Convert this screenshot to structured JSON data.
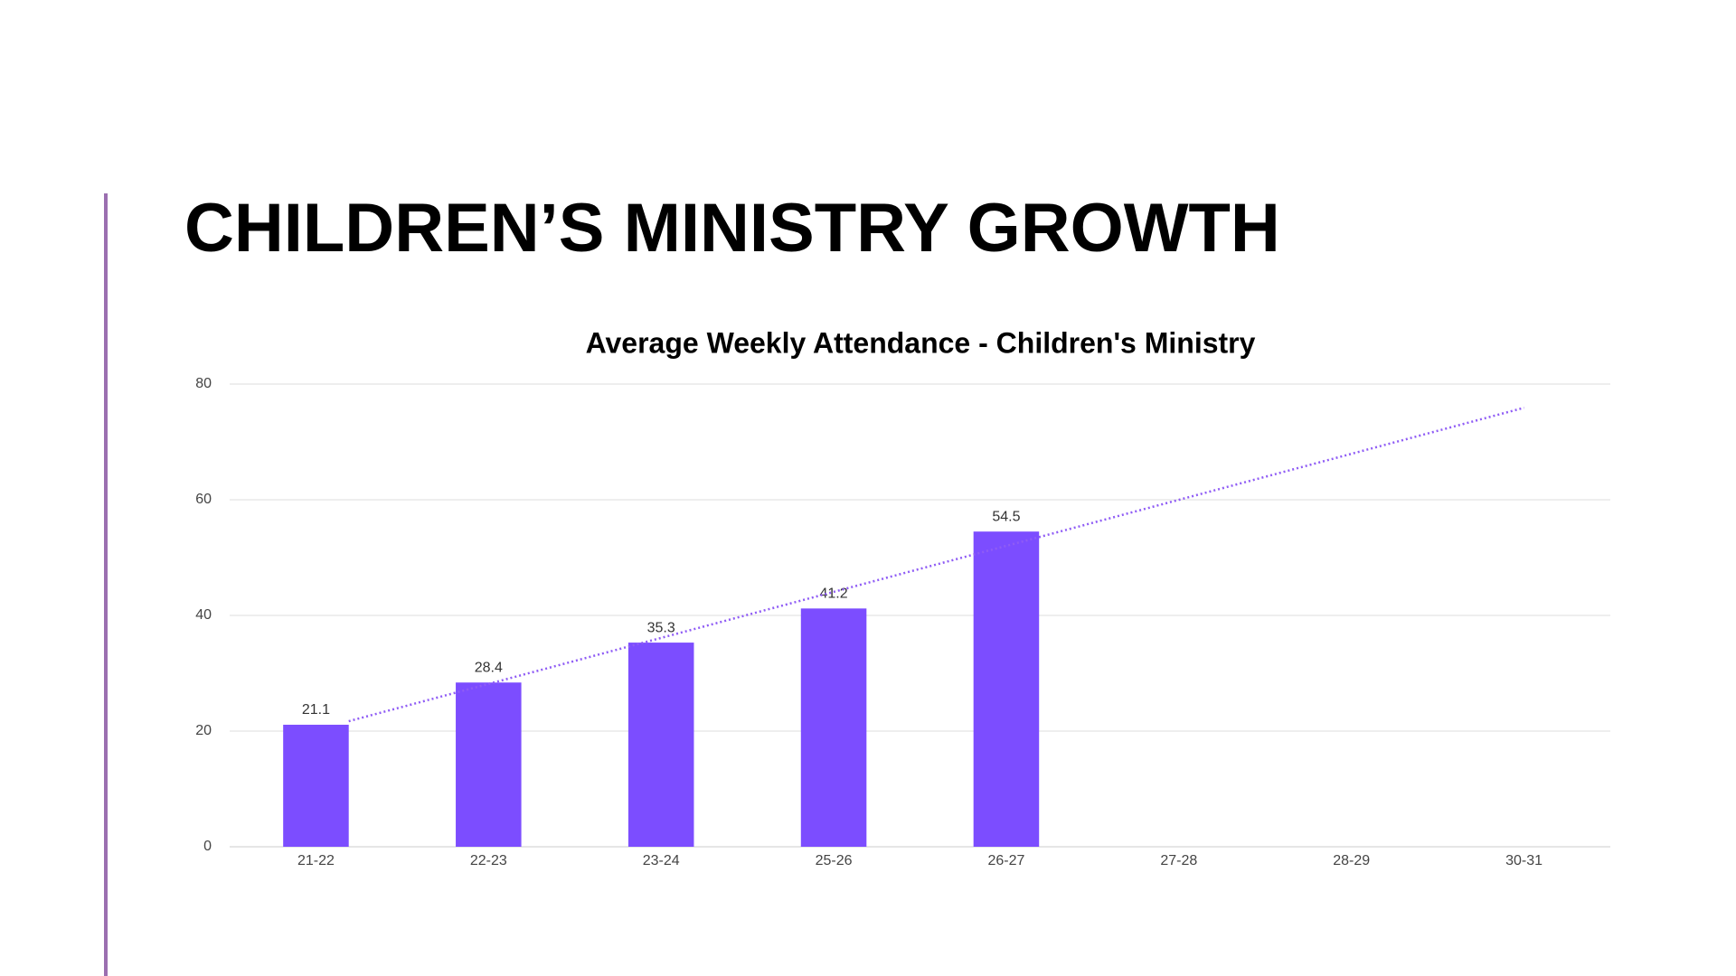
{
  "heading": "CHILDREN’S MINISTRY GROWTH",
  "chart_data": {
    "type": "bar",
    "title": "Average Weekly Attendance - Children's Ministry",
    "categories": [
      "21-22",
      "22-23",
      "23-24",
      "25-26",
      "26-27",
      "27-28",
      "28-29",
      "30-31"
    ],
    "values": [
      21.1,
      28.4,
      35.3,
      41.2,
      54.5,
      null,
      null,
      null
    ],
    "color": "#7c4dff",
    "trendline": {
      "color": "#8f5cf5",
      "start": 20.2,
      "end": 75.9
    },
    "ylim": [
      0,
      80
    ],
    "yticks": [
      0,
      20,
      40,
      60,
      80
    ],
    "grid": true
  }
}
